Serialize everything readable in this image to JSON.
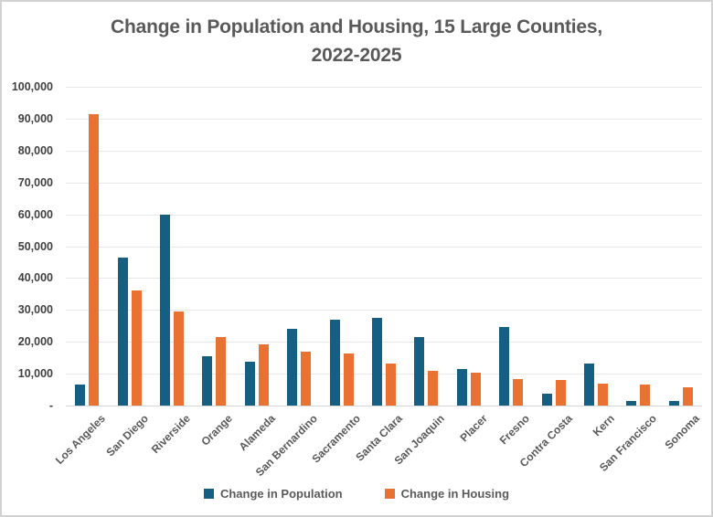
{
  "chart_data": {
    "type": "bar",
    "title_line1": "Change in Population and Housing, 15 Large Counties,",
    "title_line2": "2022-2025",
    "categories": [
      "Los Angeles",
      "San Diego",
      "Riverside",
      "Orange",
      "Alameda",
      "San Bernardino",
      "Sacramento",
      "Santa Clara",
      "San Joaquin",
      "Placer",
      "Fresno",
      "Contra Costa",
      "Kern",
      "San Francisco",
      "Sonoma"
    ],
    "series": [
      {
        "name": "Change in Population",
        "color": "#156082",
        "values": [
          6500,
          46500,
          60000,
          15500,
          13800,
          24200,
          26900,
          27400,
          21500,
          11600,
          24700,
          3700,
          13100,
          1500,
          1400
        ]
      },
      {
        "name": "Change in Housing",
        "color": "#E97132",
        "values": [
          91300,
          36000,
          29500,
          21500,
          19200,
          17000,
          16300,
          13300,
          11000,
          10200,
          8400,
          7900,
          7000,
          6600,
          5700
        ]
      }
    ],
    "ylim": [
      0,
      100000
    ],
    "y_tick_labels": [
      "100,000",
      "90,000",
      "80,000",
      "70,000",
      "60,000",
      "50,000",
      "40,000",
      "30,000",
      "20,000",
      "10,000",
      "-"
    ],
    "xlabel": "",
    "ylabel": "",
    "grid": true,
    "legend_position": "bottom"
  },
  "colors": {
    "gridline": "#e7e7e7",
    "axis_line": "#d6d6d6",
    "title_text": "#595959",
    "y_label_text": "#404040",
    "x_label_text": "#595959",
    "frame_border": "#d2d2d2"
  }
}
